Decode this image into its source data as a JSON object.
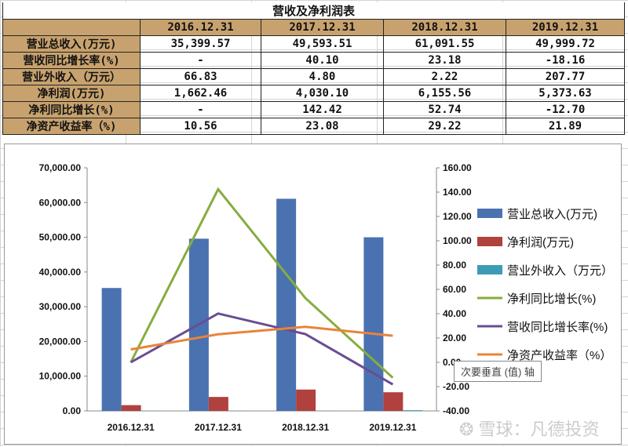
{
  "table": {
    "title": "营收及净利润表",
    "columns": [
      "2016.12.31",
      "2017.12.31",
      "2018.12.31",
      "2019.12.31"
    ],
    "rows": [
      {
        "label": "营业总收入(万元)",
        "values": [
          "35,399.57",
          "49,593.51",
          "61,091.55",
          "49,999.72"
        ]
      },
      {
        "label": "营收同比增长率(%)",
        "values": [
          "-",
          "40.10",
          "23.18",
          "-18.16"
        ]
      },
      {
        "label": "营业外收入（万元）",
        "values": [
          "66.83",
          "4.80",
          "2.22",
          "207.77"
        ]
      },
      {
        "label": "净利润(万元)",
        "values": [
          "1,662.46",
          "4,030.10",
          "6,155.56",
          "5,373.63"
        ]
      },
      {
        "label": "净利同比增长(%)",
        "values": [
          "-",
          "142.42",
          "52.74",
          "-12.70"
        ]
      },
      {
        "label": "净资产收益率（%)",
        "values": [
          "10.56",
          "23.08",
          "29.22",
          "21.89"
        ]
      }
    ]
  },
  "chart_data": {
    "type": "bar+line",
    "categories": [
      "2016.12.31",
      "2017.12.31",
      "2018.12.31",
      "2019.12.31"
    ],
    "ylim": [
      0,
      70000
    ],
    "y2lim": [
      -40,
      160
    ],
    "yticks": [
      "0.00",
      "10,000.00",
      "20,000.00",
      "30,000.00",
      "40,000.00",
      "50,000.00",
      "60,000.00",
      "70,000.00"
    ],
    "y2ticks": [
      "-40.00",
      "-20.00",
      "0.00",
      "20.00",
      "40.00",
      "60.00",
      "80.00",
      "100.00",
      "120.00",
      "140.00",
      "160.00"
    ],
    "legend": "right",
    "bars": [
      {
        "name": "营业总收入(万元)",
        "color": "#4a72b0",
        "values": [
          35399.57,
          49593.51,
          61091.55,
          49999.72
        ]
      },
      {
        "name": "净利润(万元)",
        "color": "#b0413e",
        "values": [
          1662.46,
          4030.1,
          6155.56,
          5373.63
        ]
      },
      {
        "name": "营业外收入（万元）",
        "color": "#3e9bb5",
        "values": [
          66.83,
          4.8,
          2.22,
          207.77
        ]
      }
    ],
    "lines": [
      {
        "name": "净利同比增长(%)",
        "color": "#86ad3f",
        "values": [
          0,
          142.42,
          52.74,
          -12.7
        ]
      },
      {
        "name": "营收同比增长率(%)",
        "color": "#6a4c93",
        "values": [
          0,
          40.1,
          23.18,
          -18.16
        ]
      },
      {
        "name": "净资产收益率（%）",
        "color": "#e8843a",
        "values": [
          10.56,
          23.08,
          29.22,
          21.89
        ]
      }
    ]
  },
  "tooltip": "次要垂直 (值) 轴",
  "watermark": "雪球：凡德投资"
}
